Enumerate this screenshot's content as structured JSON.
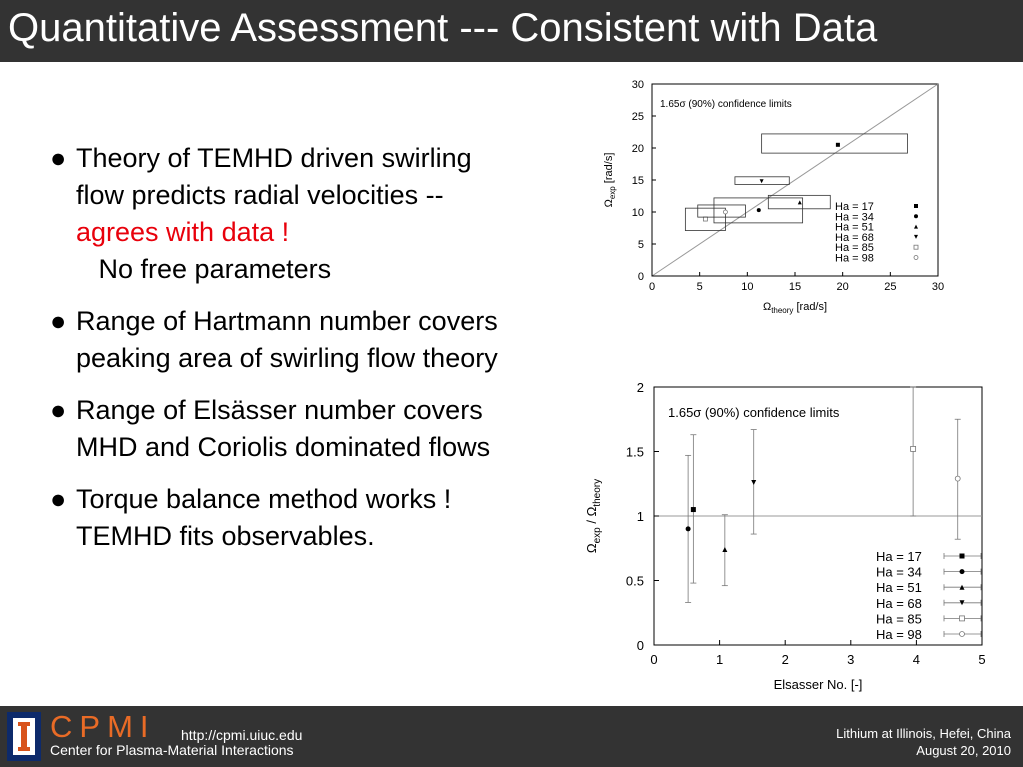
{
  "slide": {
    "title": "Quantitative Assessment --- Consistent with Data"
  },
  "bullets": [
    {
      "text_before": "Theory of TEMHD driven swirling flow predicts radial velocities -- ",
      "highlight": "agrees with data !",
      "text_after": "   No free parameters"
    },
    {
      "text": "Range of Hartmann number covers peaking area of swirling flow theory"
    },
    {
      "text": "Range of Elsässer number covers MHD and Coriolis dominated flows"
    },
    {
      "text": "Torque balance method works !  TEMHD fits observables."
    }
  ],
  "bullet_glyph": "●",
  "colors": {
    "highlight": "#e8000b",
    "bar": "#333333",
    "logo_orange": "#e96b26"
  },
  "chart_data": [
    {
      "type": "scatter",
      "annotation": "1.65σ (90%) confidence limits",
      "xlabel_main": "Ω",
      "xlabel_sub": "theory",
      "xlabel_unit": " [rad/s]",
      "ylabel_main": "Ω",
      "ylabel_sub": "exp",
      "ylabel_unit": " [rad/s]",
      "xlim": [
        0,
        30
      ],
      "ylim": [
        0,
        30
      ],
      "xticks": [
        0,
        5,
        10,
        15,
        20,
        25,
        30
      ],
      "yticks": [
        0,
        5,
        10,
        15,
        20,
        25,
        30
      ],
      "reference_line": "y = x",
      "series": [
        {
          "name": "Ha = 17",
          "marker": "filled-square",
          "x": 19.5,
          "y": 20.5,
          "box": {
            "x": [
              11.5,
              26.8
            ],
            "y": [
              19.2,
              22.2
            ]
          }
        },
        {
          "name": "Ha = 34",
          "marker": "filled-circle",
          "x": 11.2,
          "y": 10.3,
          "box": {
            "x": [
              6.5,
              15.8
            ],
            "y": [
              8.3,
              12.2
            ]
          }
        },
        {
          "name": "Ha = 51",
          "marker": "filled-triangle",
          "x": 15.5,
          "y": 11.5,
          "box": {
            "x": [
              12.2,
              18.7
            ],
            "y": [
              10.5,
              12.6
            ]
          }
        },
        {
          "name": "Ha = 68",
          "marker": "filled-triangle-down",
          "x": 11.5,
          "y": 14.8,
          "box": {
            "x": [
              8.7,
              14.4
            ],
            "y": [
              14.3,
              15.5
            ]
          }
        },
        {
          "name": "Ha = 85",
          "marker": "open-square",
          "x": 5.6,
          "y": 8.9,
          "box": {
            "x": [
              3.5,
              7.7
            ],
            "y": [
              7.1,
              10.6
            ]
          }
        },
        {
          "name": "Ha = 98",
          "marker": "open-circle",
          "x": 7.7,
          "y": 10.0,
          "box": {
            "x": [
              4.8,
              9.8
            ],
            "y": [
              9.2,
              11.1
            ]
          }
        }
      ]
    },
    {
      "type": "scatter",
      "annotation": "1.65σ (90%) confidence limits",
      "xlabel": "Elsasser No. [-]",
      "ylabel_main": "Ω",
      "ylabel_sub1": "exp",
      "ylabel_mid": " / Ω",
      "ylabel_sub2": "theory",
      "xlim": [
        0,
        5
      ],
      "ylim": [
        0,
        2
      ],
      "xticks": [
        "0",
        "1",
        "2",
        "3",
        "4",
        "5"
      ],
      "yticks": [
        "0",
        "0.5",
        "1",
        "1.5",
        "2"
      ],
      "reference_line": "y = 1",
      "series": [
        {
          "name": "Ha = 17",
          "marker": "filled-square",
          "x": 0.6,
          "y": 1.05,
          "err": [
            0.48,
            1.63
          ]
        },
        {
          "name": "Ha = 34",
          "marker": "filled-circle",
          "x": 0.52,
          "y": 0.9,
          "err": [
            0.33,
            1.47
          ]
        },
        {
          "name": "Ha = 51",
          "marker": "filled-triangle",
          "x": 1.08,
          "y": 0.74,
          "err": [
            0.46,
            1.01
          ]
        },
        {
          "name": "Ha = 68",
          "marker": "filled-triangle-down",
          "x": 1.52,
          "y": 1.26,
          "err": [
            0.86,
            1.67
          ]
        },
        {
          "name": "Ha = 85",
          "marker": "open-square",
          "x": 3.95,
          "y": 1.52,
          "err": [
            1.0,
            2.0
          ]
        },
        {
          "name": "Ha = 98",
          "marker": "open-circle",
          "x": 4.63,
          "y": 1.29,
          "err": [
            0.82,
            1.75
          ]
        }
      ]
    }
  ],
  "footer": {
    "logo_text": "CPMI",
    "center_name": "Center for Plasma-Material Interactions",
    "url": "http://cpmi.uiuc.edu",
    "event": "Lithium at Illinois, Hefei, China",
    "date": "August 20, 2010"
  }
}
